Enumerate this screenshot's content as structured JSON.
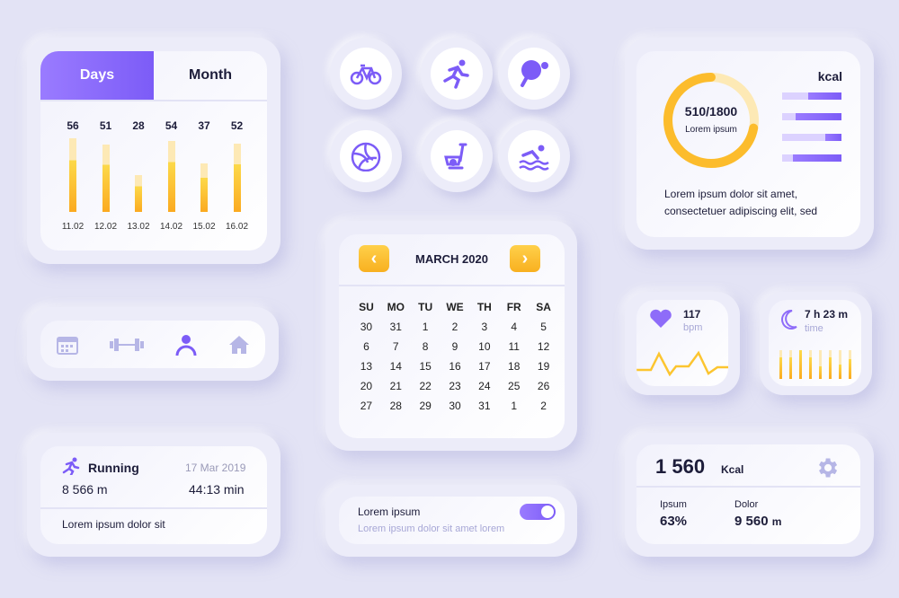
{
  "chart_card": {
    "tabs": [
      {
        "label": "Days",
        "active": true
      },
      {
        "label": "Month",
        "active": false
      }
    ]
  },
  "chart_data": {
    "type": "bar",
    "categories": [
      "11.02",
      "12.02",
      "13.02",
      "14.02",
      "15.02",
      "16.02"
    ],
    "values": [
      56,
      51,
      28,
      54,
      37,
      52
    ],
    "ylim": [
      0,
      56
    ]
  },
  "nav": {
    "items": [
      {
        "icon": "calendar-icon"
      },
      {
        "icon": "dumbbell-icon"
      },
      {
        "icon": "user-icon",
        "active": true
      },
      {
        "icon": "home-icon"
      }
    ]
  },
  "running": {
    "title": "Running",
    "date": "17 Mar 2019",
    "distance": "8 566 m",
    "time": "44:13 min",
    "note": "Lorem ipsum dolor sit"
  },
  "sports": [
    "bicycle-icon",
    "running-icon",
    "ping-pong-icon",
    "volleyball-icon",
    "exercise-bike-icon",
    "swimming-icon"
  ],
  "calendar": {
    "title": "MARCH 2020",
    "weekdays": [
      "SU",
      "MO",
      "TU",
      "WE",
      "TH",
      "FR",
      "SA"
    ],
    "days": [
      "30",
      "31",
      "1",
      "2",
      "3",
      "4",
      "5",
      "6",
      "7",
      "8",
      "9",
      "10",
      "11",
      "12",
      "13",
      "14",
      "15",
      "16",
      "17",
      "18",
      "19",
      "20",
      "21",
      "22",
      "23",
      "24",
      "25",
      "26",
      "27",
      "28",
      "29",
      "30",
      "31",
      "1",
      "2"
    ]
  },
  "toggle": {
    "title": "Lorem ipsum",
    "subtitle": "Lorem ipsum dolor sit amet lorem",
    "on": true
  },
  "kcal_card": {
    "value": "510/1800",
    "label": "Lorem ipsum",
    "unit": "kcal",
    "ring_fraction": 0.72,
    "bars": [
      0.56,
      0.78,
      0.28,
      0.82
    ],
    "text1": "Lorem ipsum dolor sit amet,",
    "text2": "consectetuer adipiscing elit, sed"
  },
  "heart": {
    "value": "117",
    "unit": "bpm"
  },
  "sleep": {
    "value": "7 h 23 m",
    "unit": "time",
    "bars": [
      0.75,
      0.75,
      1,
      0.75,
      0.45,
      0.75,
      0.5,
      0.7
    ]
  },
  "summary": {
    "value": "1 560",
    "unit": "Kcal",
    "stats": [
      {
        "label": "Ipsum",
        "value": "63%",
        "unit": ""
      },
      {
        "label": "Dolor",
        "value": "9 560",
        "unit": "m"
      }
    ]
  },
  "colors": {
    "accent": "#7c5cf7",
    "yellow": "#fdb92a",
    "bg": "#e3e3f5"
  }
}
